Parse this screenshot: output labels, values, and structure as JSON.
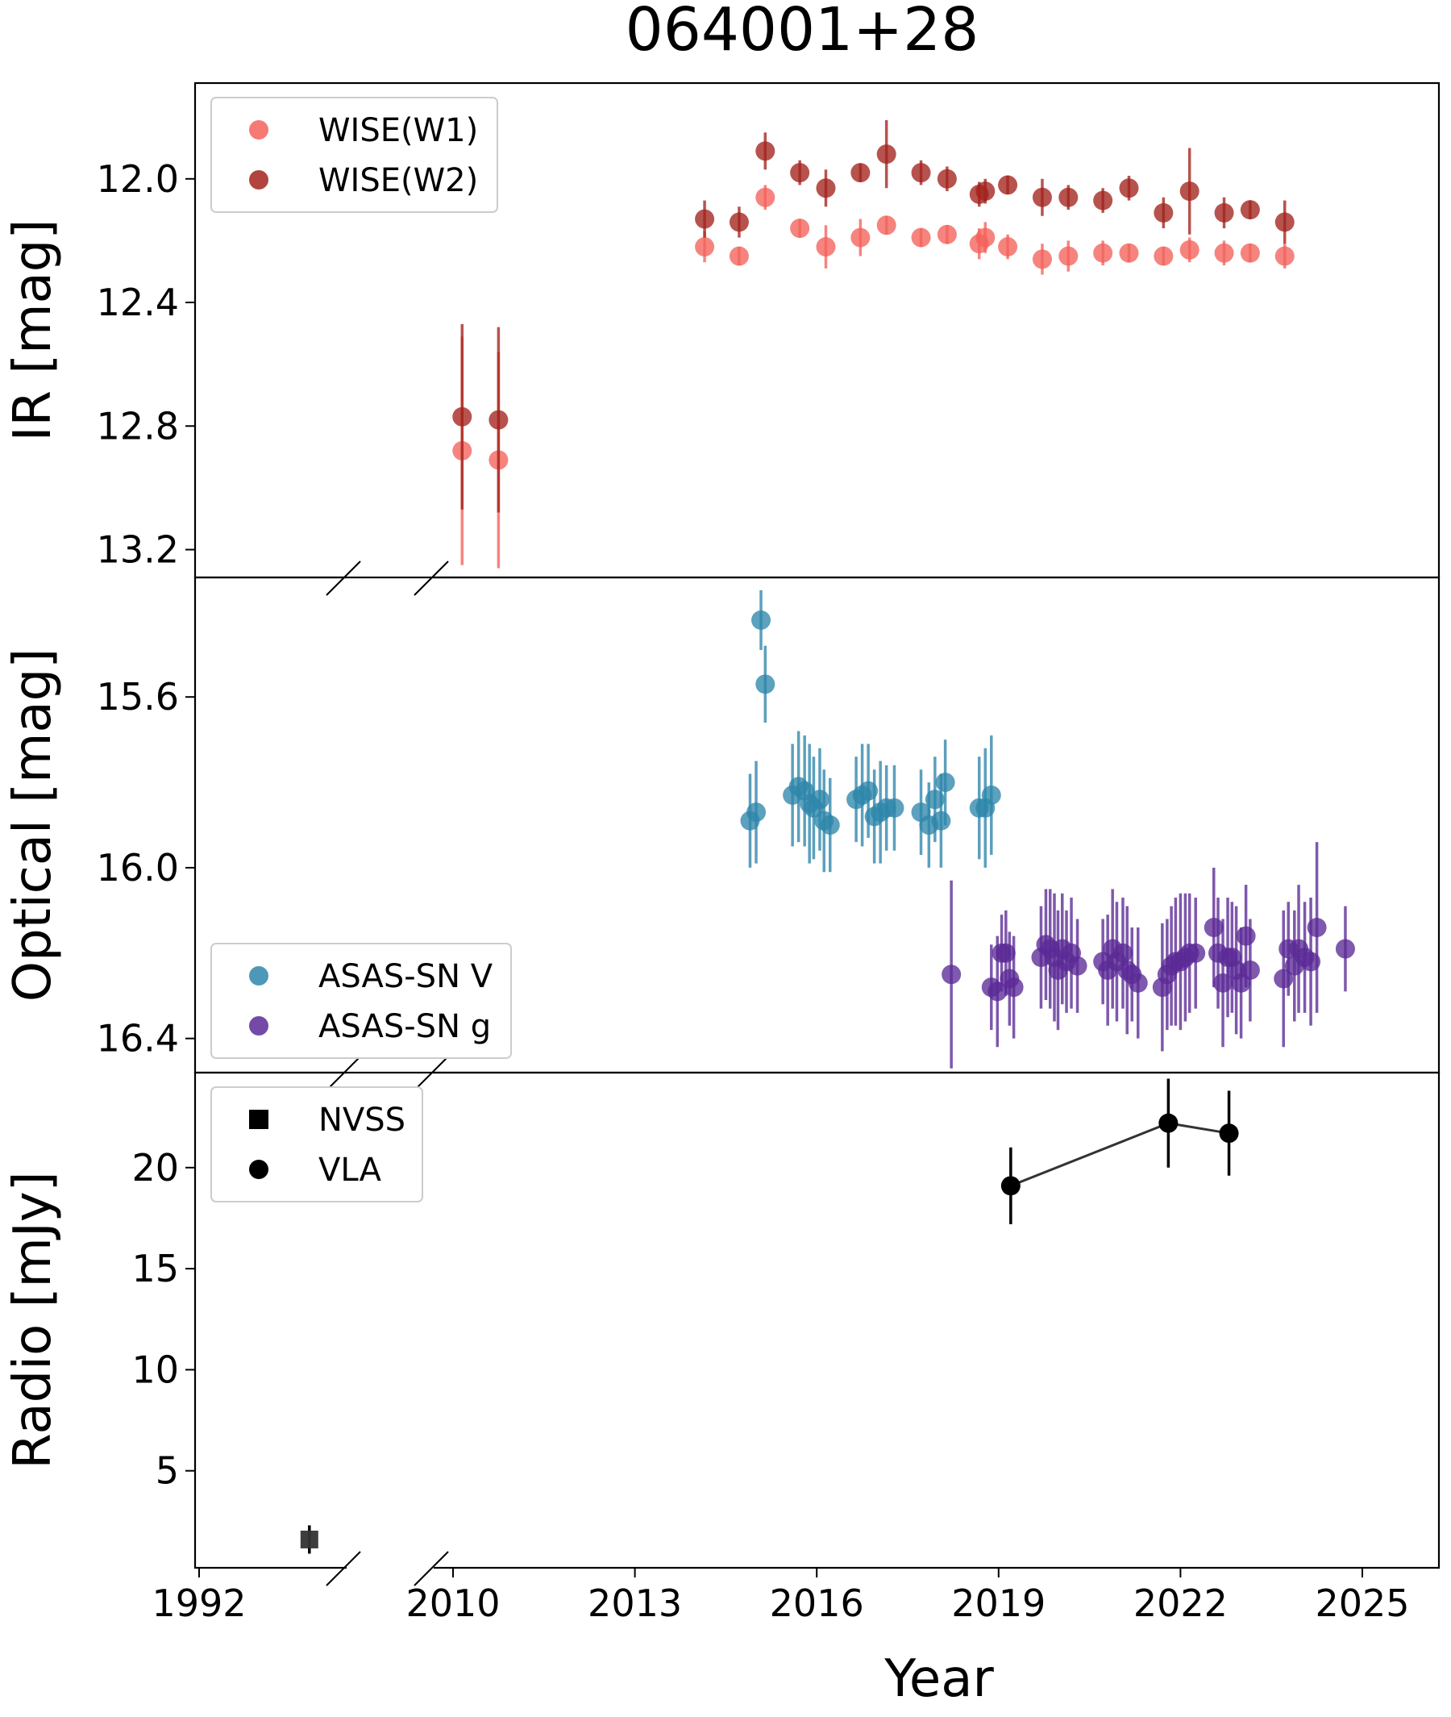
{
  "chart_data": {
    "type": "scatter",
    "title": "064001+28",
    "xlabel": "Year",
    "x_ticks": [
      "1992",
      "2010",
      "2013",
      "2016",
      "2019",
      "2022",
      "2025"
    ],
    "x_axis_break": "between 1992 and 2010",
    "panels": [
      {
        "id": "ir",
        "ylabel": "IR [mag]",
        "y_inverted": true,
        "ylim": [
          13.29,
          11.69
        ],
        "yticks": [
          "12.0",
          "12.4",
          "12.8",
          "13.2"
        ],
        "legend": "top-left",
        "series": [
          {
            "name": "WISE(W1)",
            "color": "#f4625a",
            "marker": "circle",
            "points": [
              [
                2010.15,
                12.88,
                0.37
              ],
              [
                2010.75,
                12.91,
                0.35
              ],
              [
                2014.15,
                12.22,
                0.05
              ],
              [
                2014.72,
                12.25,
                0.03
              ],
              [
                2015.15,
                12.06,
                0.04
              ],
              [
                2015.72,
                12.16,
                0.03
              ],
              [
                2016.15,
                12.22,
                0.07
              ],
              [
                2016.72,
                12.19,
                0.06
              ],
              [
                2017.15,
                12.15,
                0.03
              ],
              [
                2017.72,
                12.19,
                0.03
              ],
              [
                2018.15,
                12.18,
                0.03
              ],
              [
                2018.68,
                12.21,
                0.05
              ],
              [
                2018.78,
                12.19,
                0.05
              ],
              [
                2019.15,
                12.22,
                0.04
              ],
              [
                2019.72,
                12.26,
                0.05
              ],
              [
                2020.15,
                12.25,
                0.05
              ],
              [
                2020.72,
                12.24,
                0.04
              ],
              [
                2021.15,
                12.24,
                0.03
              ],
              [
                2021.72,
                12.25,
                0.03
              ],
              [
                2022.15,
                12.23,
                0.04
              ],
              [
                2022.72,
                12.24,
                0.04
              ],
              [
                2023.15,
                12.24,
                0.03
              ],
              [
                2023.72,
                12.25,
                0.04
              ]
            ]
          },
          {
            "name": "WISE(W2)",
            "color": "#a3231c",
            "marker": "circle",
            "points": [
              [
                2010.15,
                12.77,
                0.3
              ],
              [
                2010.75,
                12.78,
                0.3
              ],
              [
                2014.15,
                12.13,
                0.06
              ],
              [
                2014.72,
                12.14,
                0.05
              ],
              [
                2015.15,
                11.91,
                0.06
              ],
              [
                2015.72,
                11.98,
                0.04
              ],
              [
                2016.15,
                12.03,
                0.06
              ],
              [
                2016.72,
                11.98,
                0.03
              ],
              [
                2017.15,
                11.92,
                0.11
              ],
              [
                2017.72,
                11.98,
                0.04
              ],
              [
                2018.15,
                12.0,
                0.04
              ],
              [
                2018.68,
                12.05,
                0.04
              ],
              [
                2018.78,
                12.04,
                0.04
              ],
              [
                2019.15,
                12.02,
                0.03
              ],
              [
                2019.72,
                12.06,
                0.06
              ],
              [
                2020.15,
                12.06,
                0.04
              ],
              [
                2020.72,
                12.07,
                0.04
              ],
              [
                2021.15,
                12.03,
                0.04
              ],
              [
                2021.72,
                12.11,
                0.05
              ],
              [
                2022.15,
                12.04,
                0.14
              ],
              [
                2022.72,
                12.11,
                0.05
              ],
              [
                2023.15,
                12.1,
                0.03
              ],
              [
                2023.72,
                12.14,
                0.07
              ]
            ]
          }
        ]
      },
      {
        "id": "optical",
        "ylabel": "Optical [mag]",
        "y_inverted": true,
        "ylim": [
          16.48,
          15.32
        ],
        "yticks": [
          "15.6",
          "16.0",
          "16.4"
        ],
        "legend": "bottom-left",
        "series": [
          {
            "name": "ASAS-SN V",
            "color": "#2e86ab",
            "marker": "circle",
            "points": [
              [
                2014.9,
                15.89,
                0.11
              ],
              [
                2015.0,
                15.87,
                0.12
              ],
              [
                2015.08,
                15.42,
                0.07
              ],
              [
                2015.15,
                15.57,
                0.09
              ],
              [
                2015.6,
                15.83,
                0.12
              ],
              [
                2015.7,
                15.81,
                0.13
              ],
              [
                2015.8,
                15.82,
                0.13
              ],
              [
                2015.88,
                15.85,
                0.14
              ],
              [
                2015.95,
                15.86,
                0.12
              ],
              [
                2016.05,
                15.84,
                0.12
              ],
              [
                2016.12,
                15.89,
                0.12
              ],
              [
                2016.22,
                15.9,
                0.11
              ],
              [
                2016.65,
                15.84,
                0.1
              ],
              [
                2016.75,
                15.83,
                0.12
              ],
              [
                2016.85,
                15.82,
                0.11
              ],
              [
                2016.95,
                15.88,
                0.11
              ],
              [
                2017.05,
                15.87,
                0.12
              ],
              [
                2017.15,
                15.86,
                0.1
              ],
              [
                2017.28,
                15.86,
                0.1
              ],
              [
                2017.72,
                15.87,
                0.1
              ],
              [
                2017.85,
                15.9,
                0.1
              ],
              [
                2017.95,
                15.84,
                0.1
              ],
              [
                2018.05,
                15.89,
                0.11
              ],
              [
                2018.12,
                15.8,
                0.1
              ],
              [
                2018.68,
                15.86,
                0.12
              ],
              [
                2018.78,
                15.86,
                0.14
              ],
              [
                2018.88,
                15.83,
                0.14
              ]
            ]
          },
          {
            "name": "ASAS-SN g",
            "color": "#5b2a96",
            "marker": "circle",
            "points": [
              [
                2018.22,
                16.25,
                0.22
              ],
              [
                2018.88,
                16.28,
                0.1
              ],
              [
                2018.98,
                16.29,
                0.13
              ],
              [
                2019.05,
                16.2,
                0.09
              ],
              [
                2019.12,
                16.2,
                0.1
              ],
              [
                2019.18,
                16.26,
                0.11
              ],
              [
                2019.25,
                16.28,
                0.12
              ],
              [
                2019.7,
                16.21,
                0.12
              ],
              [
                2019.78,
                16.18,
                0.13
              ],
              [
                2019.85,
                16.19,
                0.14
              ],
              [
                2019.92,
                16.21,
                0.15
              ],
              [
                2019.98,
                16.24,
                0.14
              ],
              [
                2020.05,
                16.19,
                0.13
              ],
              [
                2020.12,
                16.22,
                0.12
              ],
              [
                2020.2,
                16.2,
                0.13
              ],
              [
                2020.3,
                16.23,
                0.11
              ],
              [
                2020.72,
                16.22,
                0.1
              ],
              [
                2020.8,
                16.24,
                0.13
              ],
              [
                2020.88,
                16.19,
                0.14
              ],
              [
                2020.95,
                16.22,
                0.14
              ],
              [
                2021.05,
                16.2,
                0.13
              ],
              [
                2021.12,
                16.24,
                0.15
              ],
              [
                2021.2,
                16.25,
                0.11
              ],
              [
                2021.3,
                16.27,
                0.13
              ],
              [
                2021.7,
                16.28,
                0.15
              ],
              [
                2021.78,
                16.25,
                0.13
              ],
              [
                2021.85,
                16.23,
                0.14
              ],
              [
                2021.92,
                16.22,
                0.15
              ],
              [
                2022.0,
                16.22,
                0.16
              ],
              [
                2022.08,
                16.21,
                0.15
              ],
              [
                2022.15,
                16.2,
                0.14
              ],
              [
                2022.25,
                16.2,
                0.13
              ],
              [
                2022.55,
                16.14,
                0.14
              ],
              [
                2022.62,
                16.2,
                0.13
              ],
              [
                2022.7,
                16.27,
                0.15
              ],
              [
                2022.78,
                16.21,
                0.14
              ],
              [
                2022.85,
                16.21,
                0.13
              ],
              [
                2022.92,
                16.24,
                0.15
              ],
              [
                2023.0,
                16.27,
                0.13
              ],
              [
                2023.08,
                16.16,
                0.12
              ],
              [
                2023.15,
                16.24,
                0.12
              ],
              [
                2023.7,
                16.26,
                0.16
              ],
              [
                2023.78,
                16.19,
                0.11
              ],
              [
                2023.88,
                16.23,
                0.13
              ],
              [
                2023.95,
                16.19,
                0.15
              ],
              [
                2024.05,
                16.21,
                0.13
              ],
              [
                2024.15,
                16.22,
                0.15
              ],
              [
                2024.25,
                16.14,
                0.2
              ],
              [
                2024.72,
                16.19,
                0.1
              ]
            ]
          }
        ]
      },
      {
        "id": "radio",
        "ylabel": "Radio [mJy]",
        "y_inverted": false,
        "ylim": [
          0.2,
          24.7
        ],
        "yticks": [
          "5",
          "10",
          "15",
          "20"
        ],
        "legend": "top-left",
        "series": [
          {
            "name": "NVSS",
            "color": "#000000",
            "marker": "square",
            "points": [
              [
                1995.6,
                1.6,
                0.7
              ]
            ]
          },
          {
            "name": "VLA",
            "color": "#000000",
            "marker": "circle",
            "connected": true,
            "points": [
              [
                2019.2,
                19.1,
                1.9
              ],
              [
                2021.8,
                22.2,
                2.2
              ],
              [
                2022.8,
                21.7,
                2.1
              ]
            ]
          }
        ]
      }
    ]
  }
}
